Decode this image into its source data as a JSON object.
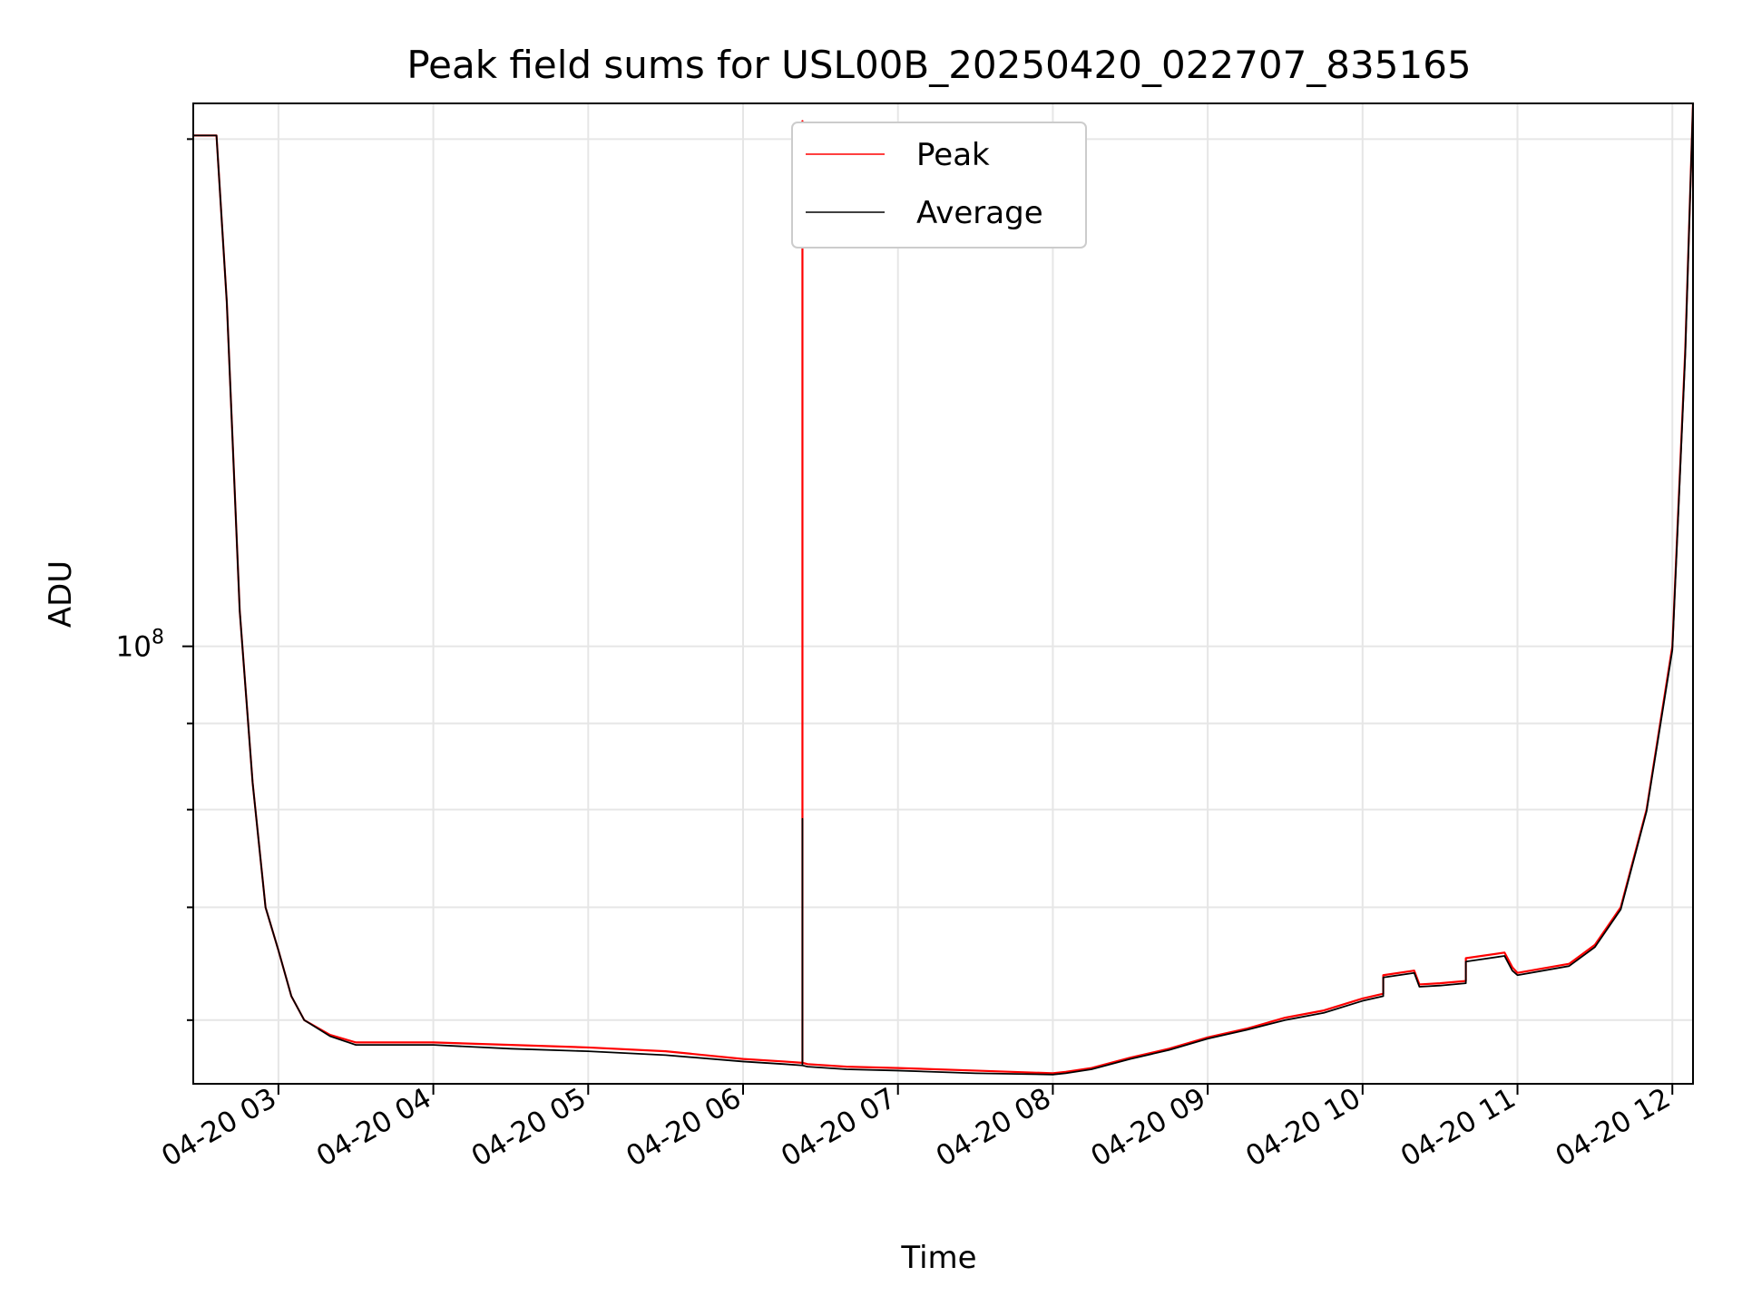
{
  "chart_data": {
    "type": "line",
    "title": "Peak field sums for USL00B_20250420_022707_835165",
    "xlabel": "Time",
    "ylabel": "ADU",
    "x_scale": "time",
    "y_scale": "log",
    "xlim": [
      "2025-04-20 02:27",
      "2025-04-20 12:08"
    ],
    "ylim": [
      55000000,
      210000000
    ],
    "x_ticks": [
      "04-20 03",
      "04-20 04",
      "04-20 05",
      "04-20 06",
      "04-20 07",
      "04-20 08",
      "04-20 09",
      "04-20 10",
      "04-20 11",
      "04-20 12"
    ],
    "y_ticks": [
      {
        "value": 100000000,
        "base": "10",
        "exp": "8"
      }
    ],
    "grid": true,
    "legend": {
      "position": "top-center"
    },
    "series": [
      {
        "name": "Peak",
        "color": "#ff0000",
        "x": [
          "02:27",
          "02:36",
          "02:40",
          "02:45",
          "02:50",
          "02:55",
          "03:00",
          "03:05",
          "03:10",
          "03:20",
          "03:30",
          "04:00",
          "04:30",
          "05:00",
          "05:30",
          "06:00",
          "06:16",
          "06:23",
          "06:23",
          "06:23",
          "06:25",
          "06:40",
          "07:00",
          "07:30",
          "08:00",
          "08:05",
          "08:15",
          "08:30",
          "08:45",
          "09:00",
          "09:15",
          "09:30",
          "09:45",
          "10:00",
          "10:08",
          "10:08",
          "10:20",
          "10:22",
          "10:30",
          "10:40",
          "10:40",
          "10:55",
          "10:58",
          "11:00",
          "11:20",
          "11:30",
          "11:40",
          "11:50",
          "12:00",
          "12:05",
          "12:08"
        ],
        "y": [
          201000000,
          201000000,
          160000000,
          105000000,
          83000000,
          70000000,
          66000000,
          62000000,
          60000000,
          58800000,
          58200000,
          58200000,
          58000000,
          57800000,
          57500000,
          56900000,
          56700000,
          56600000,
          205000000,
          56600000,
          56500000,
          56300000,
          56200000,
          56000000,
          55800000,
          55900000,
          56200000,
          57000000,
          57700000,
          58600000,
          59300000,
          60200000,
          60800000,
          61800000,
          62200000,
          63800000,
          64200000,
          63000000,
          63100000,
          63300000,
          65300000,
          65800000,
          64500000,
          64000000,
          64800000,
          66500000,
          70000000,
          80000000,
          100000000,
          150000000,
          210000000
        ]
      },
      {
        "name": "Average",
        "color": "#000000",
        "x": [
          "02:27",
          "02:36",
          "02:40",
          "02:45",
          "02:50",
          "02:55",
          "03:00",
          "03:05",
          "03:10",
          "03:20",
          "03:30",
          "04:00",
          "04:30",
          "05:00",
          "05:30",
          "06:00",
          "06:16",
          "06:23",
          "06:23",
          "06:23",
          "06:25",
          "06:40",
          "07:00",
          "07:30",
          "08:00",
          "08:05",
          "08:15",
          "08:30",
          "08:45",
          "09:00",
          "09:15",
          "09:30",
          "09:45",
          "10:00",
          "10:08",
          "10:08",
          "10:20",
          "10:22",
          "10:30",
          "10:40",
          "10:40",
          "10:55",
          "10:58",
          "11:00",
          "11:20",
          "11:30",
          "11:40",
          "11:50",
          "12:00",
          "12:05",
          "12:08"
        ],
        "y": [
          201000000,
          201000000,
          160000000,
          105000000,
          83000000,
          70000000,
          66000000,
          62000000,
          60000000,
          58700000,
          58000000,
          58000000,
          57700000,
          57500000,
          57200000,
          56700000,
          56500000,
          56400000,
          79000000,
          56400000,
          56300000,
          56100000,
          56000000,
          55800000,
          55700000,
          55800000,
          56100000,
          56900000,
          57600000,
          58500000,
          59200000,
          60000000,
          60600000,
          61600000,
          62000000,
          63600000,
          64000000,
          62800000,
          62900000,
          63100000,
          65000000,
          65500000,
          64200000,
          63800000,
          64600000,
          66300000,
          69800000,
          79800000,
          99500000,
          149000000,
          210000000
        ]
      }
    ]
  }
}
